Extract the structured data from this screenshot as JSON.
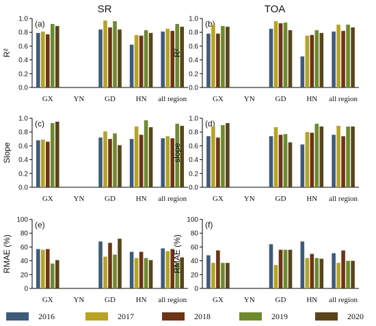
{
  "column_titles": [
    "SR",
    "TOA"
  ],
  "legend": [
    {
      "label": "2016",
      "color": "#3f5b7a"
    },
    {
      "label": "2017",
      "color": "#b6a324"
    },
    {
      "label": "2018",
      "color": "#6b3516"
    },
    {
      "label": "2019",
      "color": "#6d8a2e"
    },
    {
      "label": "2020",
      "color": "#584519"
    }
  ],
  "chart_data": [
    {
      "type": "bar",
      "tag": "(a)",
      "column": "SR",
      "ylabel": "R²",
      "ylim": [
        0,
        1.0
      ],
      "yticks": [
        "0.0",
        "0.2",
        "0.4",
        "0.6",
        "0.8",
        "1.0"
      ],
      "categories": [
        "GX",
        "YN",
        "GD",
        "HN",
        "all region"
      ],
      "series": [
        {
          "name": "2016",
          "values": [
            0.79,
            null,
            0.84,
            0.62,
            0.81
          ]
        },
        {
          "name": "2017",
          "values": [
            0.81,
            null,
            0.97,
            0.76,
            0.85
          ]
        },
        {
          "name": "2018",
          "values": [
            0.77,
            null,
            0.87,
            0.75,
            0.82
          ]
        },
        {
          "name": "2019",
          "values": [
            0.92,
            null,
            0.96,
            0.83,
            0.92
          ]
        },
        {
          "name": "2020",
          "values": [
            0.89,
            null,
            0.84,
            0.79,
            0.88
          ]
        }
      ]
    },
    {
      "type": "bar",
      "tag": "(b)",
      "column": "TOA",
      "ylabel": "R²",
      "ylim": [
        0,
        1.0
      ],
      "yticks": [
        "0.0",
        "0.2",
        "0.4",
        "0.6",
        "0.8",
        "1.0"
      ],
      "categories": [
        "GX",
        "YN",
        "GD",
        "HN",
        "all region"
      ],
      "series": [
        {
          "name": "2016",
          "values": [
            0.78,
            null,
            0.85,
            0.45,
            0.81
          ]
        },
        {
          "name": "2017",
          "values": [
            0.91,
            null,
            0.96,
            0.75,
            0.91
          ]
        },
        {
          "name": "2018",
          "values": [
            0.78,
            null,
            0.93,
            0.76,
            0.82
          ]
        },
        {
          "name": "2019",
          "values": [
            0.89,
            null,
            0.94,
            0.83,
            0.91
          ]
        },
        {
          "name": "2020",
          "values": [
            0.88,
            null,
            0.83,
            0.79,
            0.87
          ]
        }
      ]
    },
    {
      "type": "bar",
      "tag": "(c)",
      "column": "SR",
      "ylabel": "Slope",
      "ylim": [
        0,
        1.0
      ],
      "yticks": [
        "0.0",
        "0.2",
        "0.4",
        "0.6",
        "0.8",
        "1.0"
      ],
      "categories": [
        "GX",
        "YN",
        "GD",
        "HN",
        "all region"
      ],
      "series": [
        {
          "name": "2016",
          "values": [
            0.68,
            null,
            0.72,
            0.7,
            0.71
          ]
        },
        {
          "name": "2017",
          "values": [
            0.69,
            null,
            0.81,
            0.88,
            0.74
          ]
        },
        {
          "name": "2018",
          "values": [
            0.66,
            null,
            0.7,
            0.76,
            0.71
          ]
        },
        {
          "name": "2019",
          "values": [
            0.93,
            null,
            0.78,
            0.97,
            0.92
          ]
        },
        {
          "name": "2020",
          "values": [
            0.95,
            null,
            0.61,
            0.87,
            0.89
          ]
        }
      ]
    },
    {
      "type": "bar",
      "tag": "(d)",
      "column": "TOA",
      "ylabel": "slope",
      "ylim": [
        0,
        1.0
      ],
      "yticks": [
        "0.0",
        "0.2",
        "0.4",
        "0.6",
        "0.8",
        "1.0"
      ],
      "categories": [
        "GX",
        "YN",
        "GD",
        "HN",
        "all region"
      ],
      "series": [
        {
          "name": "2016",
          "values": [
            0.74,
            null,
            0.74,
            0.62,
            0.76
          ]
        },
        {
          "name": "2017",
          "values": [
            0.88,
            null,
            0.87,
            0.8,
            0.89
          ]
        },
        {
          "name": "2018",
          "values": [
            0.72,
            null,
            0.76,
            0.79,
            0.74
          ]
        },
        {
          "name": "2019",
          "values": [
            0.9,
            null,
            0.77,
            0.92,
            0.88
          ]
        },
        {
          "name": "2020",
          "values": [
            0.93,
            null,
            0.65,
            0.88,
            0.88
          ]
        }
      ]
    },
    {
      "type": "bar",
      "tag": "(e)",
      "column": "SR",
      "ylabel": "RMAE (%)",
      "ylim": [
        0,
        100
      ],
      "yticks": [
        "0",
        "20",
        "40",
        "60",
        "80",
        "100"
      ],
      "categories": [
        "GX",
        "YN",
        "GD",
        "HN",
        "all region"
      ],
      "series": [
        {
          "name": "2016",
          "values": [
            57,
            null,
            68,
            53,
            58
          ]
        },
        {
          "name": "2017",
          "values": [
            56,
            null,
            46,
            44,
            54
          ]
        },
        {
          "name": "2018",
          "values": [
            57,
            null,
            66,
            53,
            57
          ]
        },
        {
          "name": "2019",
          "values": [
            36,
            null,
            49,
            44,
            37
          ]
        },
        {
          "name": "2020",
          "values": [
            41,
            null,
            72,
            41,
            45
          ]
        }
      ]
    },
    {
      "type": "bar",
      "tag": "(f)",
      "column": "TOA",
      "ylabel": "RMAE (%)",
      "ylim": [
        0,
        100
      ],
      "yticks": [
        "0",
        "20",
        "40",
        "60",
        "80",
        "100"
      ],
      "categories": [
        "GX",
        "YN",
        "GD",
        "HN",
        "all region"
      ],
      "series": [
        {
          "name": "2016",
          "values": [
            48,
            null,
            64,
            68,
            51
          ]
        },
        {
          "name": "2017",
          "values": [
            37,
            null,
            34,
            44,
            37
          ]
        },
        {
          "name": "2018",
          "values": [
            55,
            null,
            56,
            50,
            55
          ]
        },
        {
          "name": "2019",
          "values": [
            37,
            null,
            56,
            44,
            40
          ]
        },
        {
          "name": "2020",
          "values": [
            37,
            null,
            56,
            43,
            40
          ]
        }
      ]
    }
  ]
}
